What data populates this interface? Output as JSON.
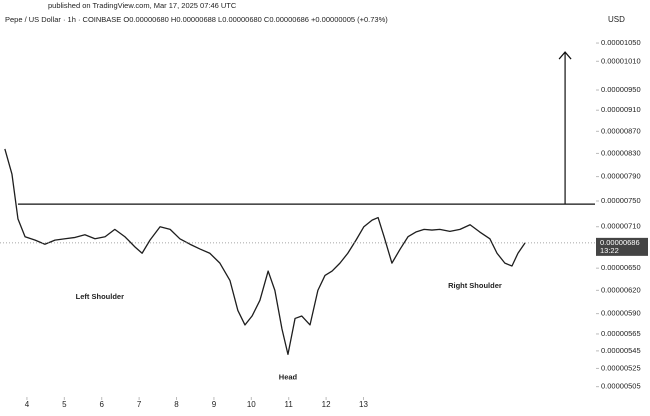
{
  "chart_data": {
    "type": "line",
    "subtitle": "published on TradingView.com, Mar 17, 2025 07:46 UTC",
    "title": "Pepe / US Dollar · 1h · COINBASE  O0.00000680 H0.00000688 L0.00000680 C0.00000686 +0.00000005 (+0.73%)",
    "y_unit": "USD",
    "log_scale": true,
    "grid": false,
    "xlim": [
      3.28,
      19.19
    ],
    "xticks": [
      4,
      5,
      6,
      7,
      8,
      9,
      10,
      11,
      12,
      13
    ],
    "ylim": [
      4.94e-06,
      1.117e-05
    ],
    "yticks": [
      {
        "value": 1.05e-05,
        "label": "0.00001050"
      },
      {
        "value": 1.01e-05,
        "label": "0.00001010"
      },
      {
        "value": 9.5e-06,
        "label": "0.00000950"
      },
      {
        "value": 9.1e-06,
        "label": "0.00000910"
      },
      {
        "value": 8.7e-06,
        "label": "0.00000870"
      },
      {
        "value": 8.3e-06,
        "label": "0.00000830"
      },
      {
        "value": 7.9e-06,
        "label": "0.00000790"
      },
      {
        "value": 7.5e-06,
        "label": "0.00000750"
      },
      {
        "value": 7.1e-06,
        "label": "0.00000710"
      },
      {
        "value": 6.5e-06,
        "label": "0.00000650"
      },
      {
        "value": 6.2e-06,
        "label": "0.00000620"
      },
      {
        "value": 5.9e-06,
        "label": "0.00000590"
      },
      {
        "value": 5.65e-06,
        "label": "0.00000565"
      },
      {
        "value": 5.45e-06,
        "label": "0.00000545"
      },
      {
        "value": 5.25e-06,
        "label": "0.00000525"
      },
      {
        "value": 5.05e-06,
        "label": "0.00000505"
      }
    ],
    "x": [
      3.41,
      3.6,
      3.76,
      3.95,
      4.22,
      4.48,
      4.75,
      5.02,
      5.29,
      5.55,
      5.82,
      6.09,
      6.35,
      6.62,
      6.89,
      7.08,
      7.29,
      7.56,
      7.83,
      8.09,
      8.36,
      8.63,
      8.89,
      9.16,
      9.43,
      9.64,
      9.83,
      10.02,
      10.23,
      10.45,
      10.63,
      10.82,
      10.98,
      11.17,
      11.35,
      11.57,
      11.78,
      11.97,
      12.16,
      12.37,
      12.58,
      12.8,
      13.01,
      13.23,
      13.39,
      13.55,
      13.76,
      13.98,
      14.19,
      14.4,
      14.62,
      14.83,
      15.04,
      15.31,
      15.58,
      15.85,
      16.11,
      16.38,
      16.57,
      16.78,
      16.97,
      17.13,
      17.32
    ],
    "series": [
      {
        "color": "#1e1e1e",
        "values": [
          8.38e-06,
          7.94e-06,
          7.22e-06,
          6.95e-06,
          6.9e-06,
          6.84e-06,
          6.9e-06,
          6.92e-06,
          6.94e-06,
          6.98e-06,
          6.92e-06,
          6.95e-06,
          7.06e-06,
          6.95e-06,
          6.8e-06,
          6.71e-06,
          6.9e-06,
          7.1e-06,
          7.06e-06,
          6.92e-06,
          6.84e-06,
          6.77e-06,
          6.71e-06,
          6.57e-06,
          6.33e-06,
          5.94e-06,
          5.76e-06,
          5.87e-06,
          6.07e-06,
          6.46e-06,
          6.2e-06,
          5.71e-06,
          5.41e-06,
          5.84e-06,
          5.87e-06,
          5.76e-06,
          6.2e-06,
          6.4e-06,
          6.46e-06,
          6.57e-06,
          6.71e-06,
          6.9e-06,
          7.1e-06,
          7.2e-06,
          7.24e-06,
          6.95e-06,
          6.57e-06,
          6.77e-06,
          6.95e-06,
          7.02e-06,
          7.06e-06,
          7.05e-06,
          7.06e-06,
          7.03e-06,
          7.06e-06,
          7.13e-06,
          7.02e-06,
          6.92e-06,
          6.71e-06,
          6.57e-06,
          6.53e-06,
          6.71e-06,
          6.86e-06
        ]
      }
    ],
    "neckline": 7.45e-06,
    "target": {
      "x": 18.39,
      "value": 1.03e-05
    },
    "last_price": {
      "value": 6.86e-06,
      "label": "0.00000686"
    },
    "countdown": "13:22",
    "annotations": [
      {
        "text": "Left Shoulder",
        "x": 5.95,
        "y": 6.11e-06
      },
      {
        "text": "Head",
        "x": 10.98,
        "y": 5.15e-06
      },
      {
        "text": "Right Shoulder",
        "x": 15.98,
        "y": 6.26e-06
      }
    ]
  }
}
